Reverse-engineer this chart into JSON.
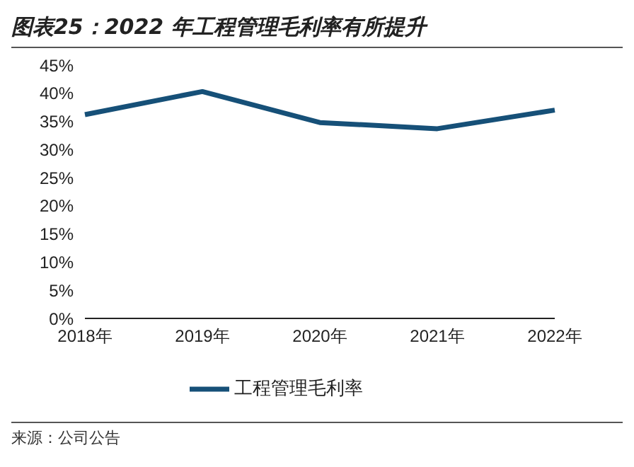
{
  "chart_data": {
    "type": "line",
    "title": "图表25：2022 年工程管理毛利率有所提升",
    "categories": [
      "2018年",
      "2019年",
      "2020年",
      "2021年",
      "2022年"
    ],
    "series": [
      {
        "name": "工程管理毛利率",
        "color": "#165078",
        "values": [
          36.2,
          40.3,
          34.8,
          33.7,
          37.0
        ]
      }
    ],
    "ylim": [
      0,
      45
    ],
    "yticks": [
      {
        "value": 0,
        "label": "0%"
      },
      {
        "value": 5,
        "label": "5%"
      },
      {
        "value": 10,
        "label": "10%"
      },
      {
        "value": 15,
        "label": "15%"
      },
      {
        "value": 20,
        "label": "20%"
      },
      {
        "value": 25,
        "label": "25%"
      },
      {
        "value": 30,
        "label": "30%"
      },
      {
        "value": 35,
        "label": "35%"
      },
      {
        "value": 40,
        "label": "40%"
      },
      {
        "value": 45,
        "label": "45%"
      }
    ],
    "grid": false,
    "legend": "bottom",
    "marker": "none",
    "line_style": "solid",
    "annotations": [
      "来源：公司公告"
    ]
  }
}
